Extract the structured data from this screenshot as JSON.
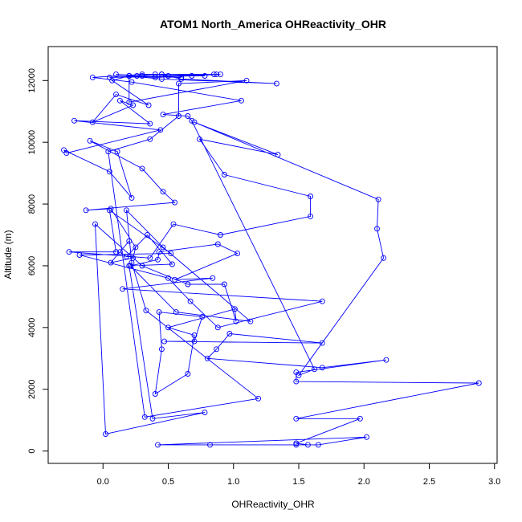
{
  "chart_data": {
    "type": "line",
    "title": "ATOM1 North_America OHReactivity_OHR",
    "xlabel": "OHReactivity_OHR",
    "ylabel": "Altitude (m)",
    "xlim": [
      -0.42,
      3.02
    ],
    "ylim": [
      -400,
      13100
    ],
    "xticks": [
      "0.0",
      "0.5",
      "1.0",
      "1.5",
      "2.0",
      "2.5",
      "3.0"
    ],
    "xtick_values": [
      0,
      0.5,
      1,
      1.5,
      2,
      2.5,
      3
    ],
    "yticks": [
      "0",
      "2000",
      "4000",
      "6000",
      "8000",
      "10000",
      "12000"
    ],
    "ytick_values": [
      0,
      2000,
      4000,
      6000,
      8000,
      10000,
      12000
    ],
    "grid": false,
    "legend": "none",
    "series": [
      {
        "color": "#0000ff",
        "marker": "open-circle",
        "points": [
          [
            0.82,
            200
          ],
          [
            1.65,
            200
          ],
          [
            2.02,
            450
          ],
          [
            0.42,
            200
          ],
          [
            1.48,
            200
          ],
          [
            1.57,
            200
          ],
          [
            1.48,
            250
          ],
          [
            1.97,
            1050
          ],
          [
            1.48,
            1050
          ],
          [
            2.88,
            2200
          ],
          [
            1.48,
            2250
          ],
          [
            1.48,
            2550
          ],
          [
            2.17,
            2950
          ],
          [
            1.68,
            2700
          ],
          [
            0.8,
            3000
          ],
          [
            0.87,
            3300
          ],
          [
            0.97,
            3800
          ],
          [
            1.68,
            3500
          ],
          [
            0.47,
            3550
          ],
          [
            0.7,
            3550
          ],
          [
            0.76,
            4350
          ],
          [
            0.43,
            4500
          ],
          [
            0.45,
            3300
          ],
          [
            0.4,
            1850
          ],
          [
            0.65,
            2500
          ],
          [
            0.7,
            3750
          ],
          [
            0.5,
            4000
          ],
          [
            1.01,
            4600
          ],
          [
            1.02,
            4200
          ],
          [
            0.93,
            5400
          ],
          [
            0.65,
            5400
          ],
          [
            0.3,
            6000
          ],
          [
            -0.06,
            7350
          ],
          [
            0.02,
            550
          ],
          [
            0.78,
            1250
          ],
          [
            0.38,
            1050
          ],
          [
            0.2,
            6000
          ],
          [
            0.53,
            6050
          ],
          [
            0.34,
            7000
          ],
          [
            0.18,
            6300
          ],
          [
            0.13,
            6450
          ],
          [
            0.2,
            6800
          ],
          [
            0.06,
            6100
          ],
          [
            0.23,
            6250
          ],
          [
            0.25,
            6600
          ],
          [
            0.06,
            7850
          ],
          [
            -0.13,
            7800
          ],
          [
            0.55,
            8050
          ],
          [
            0.46,
            8400
          ],
          [
            0.3,
            9150
          ],
          [
            -0.1,
            10050
          ],
          [
            0.11,
            9700
          ],
          [
            0.22,
            8200
          ],
          [
            0.05,
            9050
          ],
          [
            -0.3,
            9750
          ],
          [
            -0.28,
            9650
          ],
          [
            0.44,
            10400
          ],
          [
            -0.22,
            10700
          ],
          [
            0.36,
            10600
          ],
          [
            0.13,
            11350
          ],
          [
            0.23,
            11200
          ],
          [
            -0.08,
            10650
          ],
          [
            0.1,
            11550
          ],
          [
            0.35,
            11200
          ],
          [
            0.07,
            12000
          ],
          [
            0.2,
            12150
          ],
          [
            0.45,
            12050
          ],
          [
            1.33,
            11900
          ],
          [
            0.6,
            12050
          ],
          [
            0.45,
            12200
          ],
          [
            0.9,
            12200
          ],
          [
            0.4,
            12100
          ],
          [
            0.1,
            12200
          ],
          [
            0.3,
            12150
          ],
          [
            0.05,
            12100
          ],
          [
            0.68,
            12150
          ],
          [
            0.87,
            12200
          ],
          [
            0.3,
            12200
          ],
          [
            -0.08,
            12100
          ],
          [
            0.22,
            11950
          ],
          [
            1.06,
            11350
          ],
          [
            0.46,
            10900
          ],
          [
            0.65,
            10850
          ],
          [
            0.68,
            10700
          ],
          [
            1.62,
            2650
          ],
          [
            1.5,
            2450
          ],
          [
            2.15,
            6250
          ],
          [
            2.1,
            7200
          ],
          [
            2.11,
            8150
          ],
          [
            0.7,
            10650
          ],
          [
            1.34,
            9600
          ],
          [
            0.74,
            10100
          ],
          [
            0.93,
            8950
          ],
          [
            1.59,
            8250
          ],
          [
            1.59,
            7600
          ],
          [
            0.9,
            7000
          ],
          [
            0.54,
            7350
          ],
          [
            0.36,
            6250
          ],
          [
            -0.26,
            6450
          ],
          [
            0.1,
            6450
          ],
          [
            0.05,
            7800
          ],
          [
            0.52,
            6400
          ],
          [
            -0.18,
            6350
          ],
          [
            0.5,
            5600
          ],
          [
            0.67,
            4850
          ],
          [
            0.88,
            4000
          ],
          [
            1.68,
            4850
          ],
          [
            0.15,
            5250
          ],
          [
            0.84,
            5600
          ],
          [
            0.55,
            5550
          ],
          [
            1.03,
            6400
          ],
          [
            0.88,
            6700
          ],
          [
            0.43,
            6450
          ],
          [
            0.42,
            6200
          ],
          [
            0.21,
            6000
          ],
          [
            0.56,
            4500
          ],
          [
            1.13,
            4200
          ],
          [
            0.46,
            6600
          ],
          [
            0.18,
            7800
          ],
          [
            0.22,
            6100
          ],
          [
            0.33,
            4550
          ],
          [
            1.19,
            1700
          ],
          [
            0.32,
            1100
          ],
          [
            0.04,
            9700
          ],
          [
            0.36,
            10100
          ],
          [
            0.58,
            10850
          ],
          [
            0.58,
            11900
          ],
          [
            1.1,
            12000
          ],
          [
            0.2,
            11300
          ],
          [
            0.2,
            12150
          ],
          [
            0.6,
            12100
          ],
          [
            0.4,
            12200
          ],
          [
            0.26,
            12150
          ],
          [
            0.45,
            12200
          ],
          [
            0.78,
            12150
          ],
          [
            0.5,
            12150
          ],
          [
            0.85,
            12200
          ]
        ]
      }
    ]
  }
}
